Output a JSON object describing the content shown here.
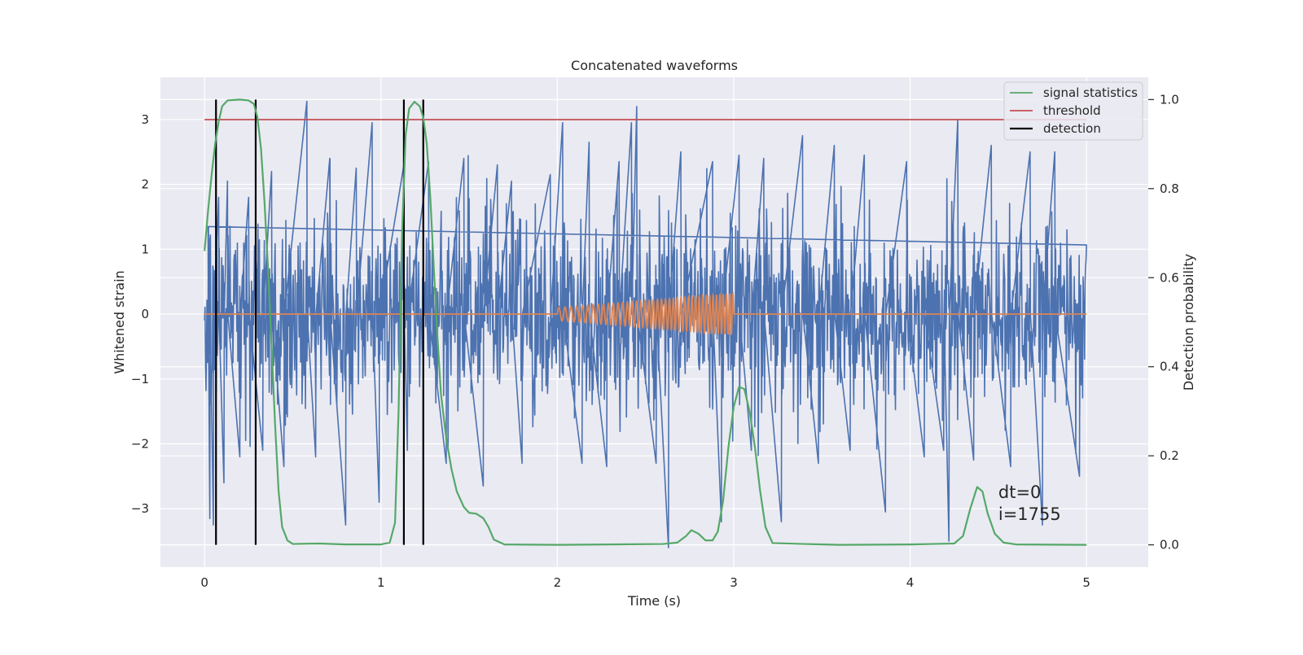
{
  "chart_data": {
    "type": "line",
    "title": "Concatenated waveforms",
    "xlabel": "Time (s)",
    "ylabel": "Whitened strain",
    "y2label": "Detection probability",
    "xlim": [
      -0.25,
      5.35
    ],
    "ylim": [
      -3.9,
      3.65
    ],
    "y2lim": [
      -0.05,
      1.05
    ],
    "xticks": [
      0,
      1,
      2,
      3,
      4,
      5
    ],
    "yticks": [
      -3,
      -2,
      -1,
      0,
      1,
      2,
      3
    ],
    "y2ticks": [
      0.0,
      0.2,
      0.4,
      0.6,
      0.8,
      1.0
    ],
    "xtick_labels": [
      "0",
      "1",
      "2",
      "3",
      "4",
      "5"
    ],
    "ytick_labels": [
      "−3",
      "−2",
      "−1",
      "0",
      "1",
      "2",
      "3"
    ],
    "y2tick_labels": [
      "0.0",
      "0.2",
      "0.4",
      "0.6",
      "0.8",
      "1.0"
    ],
    "grid": true,
    "legend_position": "top-right",
    "colors": {
      "background": "#eaeaf2",
      "grid": "#ffffff",
      "strain": "#4c72b0",
      "injected": "#dd8452",
      "signal_statistics": "#55a868",
      "threshold": "#c44e52",
      "detection": "#000000"
    },
    "series": [
      {
        "key": "strain",
        "axis": "left",
        "style": "noise",
        "x_range": [
          0,
          5
        ],
        "band_std": 0.72,
        "spike_peaks": [
          [
            0.02,
            1.35
          ],
          [
            0.03,
            -3.15
          ],
          [
            0.05,
            -3.25
          ],
          [
            0.08,
            1.8
          ],
          [
            0.11,
            -2.6
          ],
          [
            0.13,
            2.05
          ],
          [
            0.2,
            -2.2
          ],
          [
            0.25,
            1.8
          ],
          [
            0.33,
            -2.1
          ],
          [
            0.38,
            2.2
          ],
          [
            0.45,
            -2.35
          ],
          [
            0.58,
            3.28
          ],
          [
            0.63,
            -2.2
          ],
          [
            0.71,
            2.4
          ],
          [
            0.8,
            -3.25
          ],
          [
            0.86,
            2.25
          ],
          [
            0.95,
            2.95
          ],
          [
            0.99,
            -2.9
          ],
          [
            1.13,
            2.3
          ],
          [
            1.15,
            -2.1
          ],
          [
            1.27,
            2.35
          ],
          [
            1.37,
            -2.3
          ],
          [
            1.47,
            2.4
          ],
          [
            1.58,
            -2.65
          ],
          [
            1.66,
            2.3
          ],
          [
            1.74,
            2.05
          ],
          [
            1.8,
            -2.3
          ],
          [
            1.96,
            2.15
          ],
          [
            2.03,
            2.95
          ],
          [
            2.14,
            -2.3
          ],
          [
            2.18,
            2.65
          ],
          [
            2.28,
            -2.35
          ],
          [
            2.35,
            2.35
          ],
          [
            2.42,
            2.95
          ],
          [
            2.45,
            3.2
          ],
          [
            2.56,
            -2.3
          ],
          [
            2.63,
            -3.6
          ],
          [
            2.7,
            2.5
          ],
          [
            2.88,
            2.35
          ],
          [
            2.93,
            -3.2
          ],
          [
            3.03,
            2.45
          ],
          [
            3.1,
            -2.1
          ],
          [
            3.17,
            2.4
          ],
          [
            3.27,
            -3.2
          ],
          [
            3.39,
            2.75
          ],
          [
            3.48,
            -2.3
          ],
          [
            3.57,
            2.6
          ],
          [
            3.66,
            -2.1
          ],
          [
            3.74,
            2.45
          ],
          [
            3.86,
            -3.05
          ],
          [
            3.98,
            2.35
          ],
          [
            4.08,
            -2.2
          ],
          [
            4.19,
            -2.1
          ],
          [
            4.22,
            -3.5
          ],
          [
            4.27,
            3.0
          ],
          [
            4.36,
            -2.25
          ],
          [
            4.46,
            2.6
          ],
          [
            4.57,
            -2.35
          ],
          [
            4.68,
            2.5
          ],
          [
            4.75,
            -3.25
          ],
          [
            4.82,
            2.5
          ],
          [
            4.96,
            -2.5
          ]
        ]
      },
      {
        "key": "injected",
        "axis": "left",
        "style": "chirp",
        "flat_range": [
          0,
          5
        ],
        "chirp_range": [
          2.0,
          3.0
        ],
        "amplitude_start": 0.1,
        "amplitude_end": 0.32,
        "cycles_start_per_s": 28,
        "cycles_end_per_s": 55
      },
      {
        "key": "signal_statistics",
        "name": "signal statistics",
        "axis": "right",
        "points": [
          [
            0.0,
            0.66
          ],
          [
            0.02,
            0.75
          ],
          [
            0.04,
            0.83
          ],
          [
            0.06,
            0.9
          ],
          [
            0.08,
            0.95
          ],
          [
            0.1,
            0.985
          ],
          [
            0.13,
            0.998
          ],
          [
            0.2,
            1.0
          ],
          [
            0.25,
            0.998
          ],
          [
            0.28,
            0.99
          ],
          [
            0.3,
            0.96
          ],
          [
            0.32,
            0.89
          ],
          [
            0.34,
            0.77
          ],
          [
            0.36,
            0.62
          ],
          [
            0.38,
            0.45
          ],
          [
            0.4,
            0.27
          ],
          [
            0.42,
            0.12
          ],
          [
            0.44,
            0.04
          ],
          [
            0.47,
            0.01
          ],
          [
            0.5,
            0.002
          ],
          [
            0.65,
            0.003
          ],
          [
            0.8,
            0.001
          ],
          [
            1.0,
            0.001
          ],
          [
            1.05,
            0.005
          ],
          [
            1.08,
            0.05
          ],
          [
            1.1,
            0.3
          ],
          [
            1.12,
            0.7
          ],
          [
            1.14,
            0.92
          ],
          [
            1.16,
            0.98
          ],
          [
            1.19,
            0.995
          ],
          [
            1.22,
            0.985
          ],
          [
            1.24,
            0.96
          ],
          [
            1.26,
            0.9
          ],
          [
            1.28,
            0.78
          ],
          [
            1.3,
            0.62
          ],
          [
            1.32,
            0.47
          ],
          [
            1.34,
            0.34
          ],
          [
            1.37,
            0.24
          ],
          [
            1.4,
            0.17
          ],
          [
            1.43,
            0.12
          ],
          [
            1.47,
            0.085
          ],
          [
            1.5,
            0.072
          ],
          [
            1.54,
            0.07
          ],
          [
            1.58,
            0.06
          ],
          [
            1.61,
            0.04
          ],
          [
            1.64,
            0.012
          ],
          [
            1.7,
            0.001
          ],
          [
            2.0,
            0.0
          ],
          [
            2.6,
            0.002
          ],
          [
            2.68,
            0.005
          ],
          [
            2.73,
            0.02
          ],
          [
            2.76,
            0.033
          ],
          [
            2.8,
            0.025
          ],
          [
            2.84,
            0.01
          ],
          [
            2.88,
            0.01
          ],
          [
            2.91,
            0.03
          ],
          [
            2.94,
            0.1
          ],
          [
            2.97,
            0.22
          ],
          [
            3.0,
            0.31
          ],
          [
            3.03,
            0.355
          ],
          [
            3.06,
            0.35
          ],
          [
            3.09,
            0.3
          ],
          [
            3.12,
            0.22
          ],
          [
            3.15,
            0.12
          ],
          [
            3.18,
            0.04
          ],
          [
            3.22,
            0.004
          ],
          [
            3.4,
            0.002
          ],
          [
            3.6,
            0.0
          ],
          [
            4.0,
            0.001
          ],
          [
            4.25,
            0.003
          ],
          [
            4.3,
            0.02
          ],
          [
            4.34,
            0.08
          ],
          [
            4.38,
            0.13
          ],
          [
            4.41,
            0.12
          ],
          [
            4.44,
            0.07
          ],
          [
            4.48,
            0.025
          ],
          [
            4.53,
            0.005
          ],
          [
            4.6,
            0.001
          ],
          [
            5.0,
            0.0
          ]
        ]
      },
      {
        "key": "threshold",
        "name": "threshold",
        "axis": "right",
        "points": [
          [
            0,
            0.955
          ],
          [
            5,
            0.955
          ]
        ]
      },
      {
        "key": "detection",
        "name": "detection",
        "axis": "right",
        "vlines": [
          0.065,
          0.29,
          1.13,
          1.24
        ],
        "span": [
          0.0,
          1.0
        ]
      }
    ],
    "annotations": [
      {
        "key": "dt",
        "text": "dt=0",
        "x": 4.5,
        "y2": 0.105
      },
      {
        "key": "index",
        "text": "i=1755",
        "x": 4.5,
        "y2": 0.056
      }
    ]
  }
}
